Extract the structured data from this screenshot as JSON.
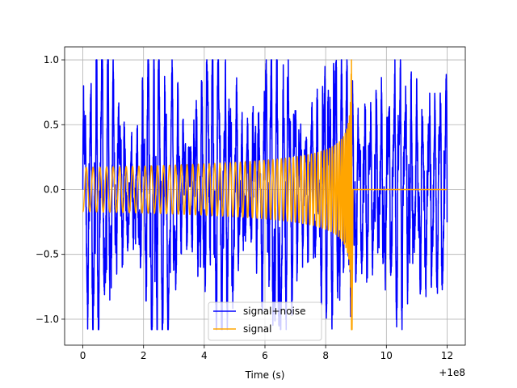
{
  "chart_data": {
    "type": "line",
    "title": "",
    "xlabel": "Time (s)",
    "ylabel": "",
    "x_offset_label": "+1e8",
    "xlim": [
      -0.6,
      12.6
    ],
    "ylim": [
      -1.2,
      1.1
    ],
    "x_ticks": [
      0,
      2,
      4,
      6,
      8,
      10,
      12
    ],
    "x_tick_labels": [
      "0",
      "2",
      "4",
      "6",
      "8",
      "10",
      "12"
    ],
    "y_ticks": [
      -1.0,
      -0.5,
      0.0,
      0.5,
      1.0
    ],
    "y_tick_labels": [
      "−1.0",
      "−0.5",
      "0.0",
      "0.5",
      "1.0"
    ],
    "grid": true,
    "legend_position": "lower-center",
    "series": [
      {
        "name": "signal+noise",
        "color": "#0000ff",
        "x_start": 0,
        "x_end": 12,
        "min": -1.08,
        "max": 1.0
      },
      {
        "name": "signal",
        "color": "#ffa500",
        "x_start": 0,
        "chirp_end": 8.85,
        "x_end": 12,
        "amplitude_start": 0.17,
        "amplitude_peak": 1.0,
        "min": -1.08,
        "post_chirp_value": 0.0
      }
    ]
  }
}
